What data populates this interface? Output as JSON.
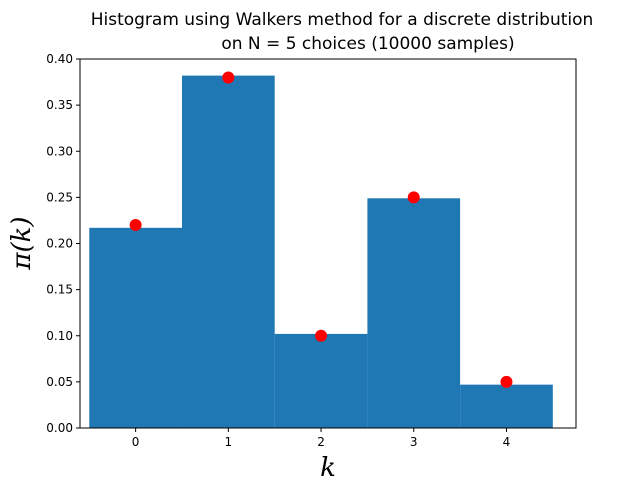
{
  "chart_data": {
    "type": "bar",
    "title_line1": "Histogram using Walkers method for a discrete distribution",
    "title_line2": "on N = 5 choices (10000 samples)",
    "xlabel": "k",
    "ylabel": "π(k)",
    "categories": [
      0,
      1,
      2,
      3,
      4
    ],
    "x_tick_labels": [
      "0",
      "1",
      "2",
      "3",
      "4"
    ],
    "xlim": [
      -0.6,
      4.75
    ],
    "ylim": [
      0.0,
      0.4
    ],
    "y_ticks": [
      0.0,
      0.05,
      0.1,
      0.15,
      0.2,
      0.25,
      0.3,
      0.35,
      0.4
    ],
    "y_tick_labels": [
      "0.00",
      "0.05",
      "0.10",
      "0.15",
      "0.20",
      "0.25",
      "0.30",
      "0.35",
      "0.40"
    ],
    "grid": false,
    "series": [
      {
        "kind": "bar",
        "values": [
          0.217,
          0.382,
          0.102,
          0.249,
          0.047
        ],
        "color": "#1f77b4",
        "bar_width": 1.0
      },
      {
        "kind": "scatter",
        "values": [
          0.22,
          0.38,
          0.1,
          0.25,
          0.05
        ],
        "color": "#ff0000"
      }
    ]
  }
}
